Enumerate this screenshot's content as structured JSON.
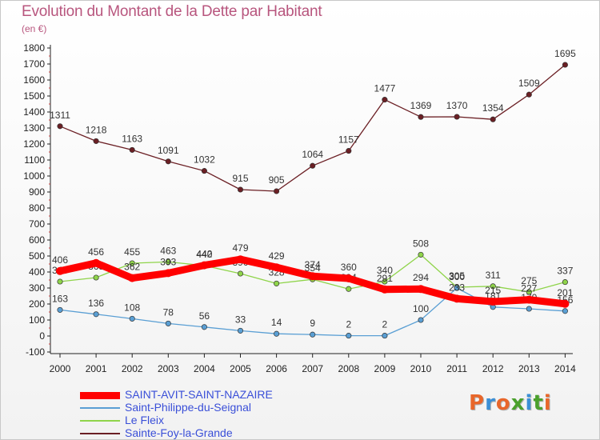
{
  "header": {
    "title": "Evolution du Montant de la Dette par Habitant",
    "subtitle": "(en €)"
  },
  "brand": {
    "text": "Proxiti",
    "colors": [
      "#e8662a",
      "#3b8fd6",
      "#e8662a",
      "#4aa02c",
      "#3b8fd6",
      "#4aa02c",
      "#e8662a"
    ]
  },
  "chart_data": {
    "type": "line",
    "title": "Evolution du Montant de la Dette par Habitant",
    "subtitle": "(en €)",
    "x": [
      "2000",
      "2001",
      "2002",
      "2003",
      "2004",
      "2005",
      "2006",
      "2007",
      "2008",
      "2009",
      "2010",
      "2011",
      "2012",
      "2013",
      "2014"
    ],
    "ylim": [
      -100,
      1800
    ],
    "yticks": [
      -100,
      0,
      100,
      200,
      300,
      400,
      500,
      600,
      700,
      800,
      900,
      1000,
      1100,
      1200,
      1300,
      1400,
      1500,
      1600,
      1700,
      1800
    ],
    "grid": false,
    "legend_position": "bottom-left",
    "series": [
      {
        "name": "Sainte-Foy-la-Grande",
        "color": "#6b1f24",
        "values": [
          1311,
          1218,
          1163,
          1091,
          1032,
          915,
          905,
          1064,
          1157,
          1477,
          1369,
          1370,
          1354,
          1509,
          1695
        ]
      },
      {
        "name": "Le Fleix",
        "color": "#8fd44a",
        "values": [
          340,
          365,
          455,
          463,
          440,
          390,
          328,
          354,
          294,
          340,
          508,
          305,
          311,
          275,
          337
        ]
      },
      {
        "name": "Saint-Philippe-du-Seignal",
        "color": "#5a9fd4",
        "values": [
          163,
          136,
          108,
          78,
          56,
          33,
          14,
          9,
          2,
          2,
          100,
          300,
          181,
          170,
          156
        ]
      },
      {
        "name": "SAINT-AVIT-SAINT-NAZAIRE",
        "color": "#ff0000",
        "values": [
          406,
          456,
          362,
          393,
          442,
          479,
          429,
          374,
          360,
          291,
          294,
          233,
          215,
          227,
          201
        ]
      }
    ],
    "legend": [
      "SAINT-AVIT-SAINT-NAZAIRE",
      "Saint-Philippe-du-Seignal",
      "Le Fleix",
      "Sainte-Foy-la-Grande"
    ]
  }
}
